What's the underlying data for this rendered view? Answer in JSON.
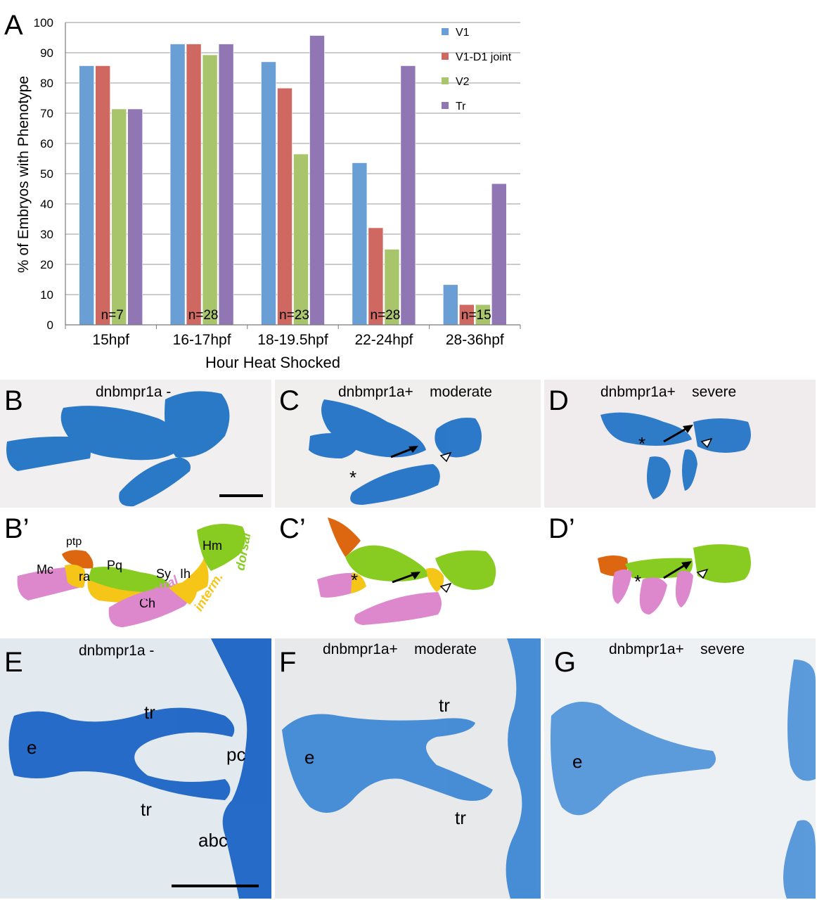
{
  "figure": {
    "panel_letters": {
      "A": "A",
      "B": "B",
      "C": "C",
      "D": "D",
      "Bp": "B’",
      "Cp": "C’",
      "Dp": "D’",
      "E": "E",
      "F": "F",
      "G": "G"
    },
    "photo_panels": {
      "B": {
        "title": "dnbmpr1a -"
      },
      "C": {
        "title": "dnbmpr1a+    moderate"
      },
      "D": {
        "title": "dnbmpr1a+    severe"
      },
      "E": {
        "title": "dnbmpr1a -"
      },
      "F": {
        "title": "dnbmpr1a+    moderate"
      },
      "G": {
        "title": "dnbmpr1a+    severe"
      }
    },
    "diagram_labels": {
      "ptp": "ptp",
      "mc": "Mc",
      "ra": "ra",
      "pq": "Pq",
      "sy": "Sy",
      "ih": "Ih",
      "hm": "Hm",
      "ch": "Ch",
      "ventral": "ventral",
      "interm": "interm.",
      "dorsal": "dorsal"
    },
    "marks": {
      "asterisk": "*"
    },
    "tissue_labels": {
      "e": "e",
      "tr": "tr",
      "pc": "pc",
      "abc": "abc"
    },
    "colors": {
      "ventral": "#dd88cc",
      "intermediate": "#f5c518",
      "dorsal": "#88cc22",
      "ptp": "#dd6611",
      "cartilage_stain": "#1a6fc4"
    }
  },
  "chart_data": {
    "type": "bar",
    "categories": [
      "15hpf",
      "16-17hpf",
      "18-19.5hpf",
      "22-24hpf",
      "28-36hpf"
    ],
    "series": [
      {
        "name": "V1",
        "color": "#6a9fd6",
        "values": [
          85.7,
          92.9,
          87.0,
          53.6,
          13.3
        ]
      },
      {
        "name": "V1-D1 joint",
        "color": "#d06862",
        "values": [
          85.7,
          92.9,
          78.3,
          32.1,
          6.7
        ]
      },
      {
        "name": "V2",
        "color": "#a9c56b",
        "values": [
          71.4,
          89.3,
          56.5,
          25.0,
          6.7
        ]
      },
      {
        "name": "Tr",
        "color": "#9077b4",
        "values": [
          71.4,
          92.9,
          95.7,
          85.7,
          46.7
        ]
      }
    ],
    "sample_sizes": [
      "n=7",
      "n=28",
      "n=23",
      "n=28",
      "n=15"
    ],
    "xlabel": "Hour Heat Shocked",
    "ylabel": "% of Embryos with Phenotype",
    "ylim": [
      0,
      100
    ],
    "yticks": [
      "0",
      "10",
      "20",
      "30",
      "40",
      "50",
      "60",
      "70",
      "80",
      "90",
      "100"
    ],
    "grid": true,
    "legend": "top-right"
  }
}
